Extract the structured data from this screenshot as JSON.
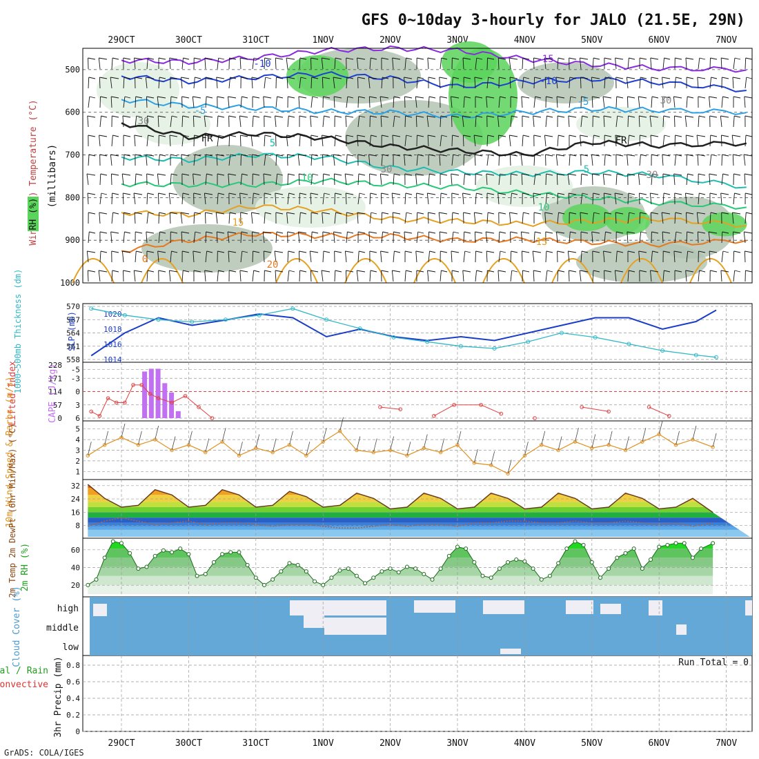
{
  "title": "GFS 0~10day 3-hourly for JALO (21.5E, 29N)",
  "footer": "GrADS: COLA/IGES",
  "dates": [
    "29OCT",
    "30OCT",
    "31OCT",
    "1NOV",
    "2NOV",
    "3NOV",
    "4NOV",
    "5NOV",
    "6NOV",
    "7NOV"
  ],
  "colors": {
    "rh_green": "#5ad45a",
    "rh_grey": "#b4c4b4",
    "rh_light": "#e2f0e2",
    "temp_purple": "#8a2be2",
    "temp_blue": "#1f3fcf",
    "temp_lightblue": "#2aa0e6",
    "temp_teal": "#1cbcb0",
    "temp_green": "#28c878",
    "temp_orange": "#e6a020",
    "temp_red": "#e03030",
    "slp": "#1a3cc8",
    "thickness": "#30b8c8",
    "cape": "#c070f0",
    "lifted": "#e04040",
    "wind": "#e09020",
    "cloud": "#64a8d8",
    "temp_line": "#6b3a1e"
  },
  "panels": {
    "upper": {
      "left_labels": [
        "Wind (m/s)",
        "Temperature (°C)",
        "RH (%)",
        "(millibars)"
      ],
      "yticks": [
        "500",
        "600",
        "700",
        "800",
        "900",
        "1000"
      ],
      "contour_labels": [
        "-15",
        "-10",
        "-5",
        "FR",
        "5",
        "10",
        "15",
        "20",
        "0",
        "30"
      ],
      "chart_data": {
        "type": "heatmap",
        "y_unit": "mb",
        "ylim": [
          450,
          1000
        ],
        "isotherms": [
          {
            "name": "-15",
            "color": "#8a2be2",
            "x_days": [
              0,
              1,
              2,
              3,
              4,
              5,
              6,
              7,
              8,
              9.3
            ],
            "p": [
              478,
              482,
              472,
              455,
              450,
              455,
              475,
              488,
              497,
              500
            ]
          },
          {
            "name": "-10",
            "color": "#1f3fcf",
            "x_days": [
              0,
              1,
              2,
              3,
              4,
              5,
              6,
              7,
              8,
              9.3
            ],
            "p": [
              515,
              528,
              518,
              510,
              520,
              540,
              528,
              522,
              530,
              548
            ]
          },
          {
            "name": "-5",
            "color": "#2aa0e6",
            "x_days": [
              0,
              1,
              2,
              3,
              4,
              5,
              6,
              7,
              8,
              9.3
            ],
            "p": [
              570,
              585,
              590,
              598,
              600,
              610,
              600,
              592,
              595,
              600
            ]
          },
          {
            "name": "FR",
            "color": "#222222",
            "x_days": [
              0,
              1,
              2,
              3,
              4,
              5,
              6,
              7,
              8,
              9.3
            ],
            "p": [
              625,
              658,
              650,
              660,
              680,
              690,
              700,
              670,
              678,
              672
            ]
          },
          {
            "name": "5",
            "color": "#1cbcb0",
            "x_days": [
              0,
              1,
              2,
              3,
              4,
              5,
              6,
              7,
              8,
              9.3
            ],
            "p": [
              705,
              712,
              700,
              705,
              730,
              740,
              745,
              740,
              748,
              775
            ]
          },
          {
            "name": "10",
            "color": "#28c878",
            "x_days": [
              0,
              1,
              2,
              3,
              4,
              5,
              6,
              7,
              8,
              9.3
            ],
            "p": [
              768,
              770,
              770,
              760,
              770,
              775,
              790,
              800,
              812,
              822
            ]
          },
          {
            "name": "15",
            "color": "#e6a020",
            "x_days": [
              0,
              1,
              2,
              3,
              4,
              5,
              6,
              7,
              8,
              9.3
            ],
            "p": [
              835,
              840,
              820,
              830,
              850,
              855,
              862,
              855,
              850,
              865
            ]
          },
          {
            "name": "20",
            "color": "#e67820",
            "x_days": [
              0,
              1,
              2,
              3,
              4,
              5,
              6,
              7,
              8,
              9.3
            ],
            "p": [
              925,
              900,
              885,
              890,
              890,
              900,
              898,
              905,
              910,
              900
            ]
          }
        ]
      }
    },
    "slp": {
      "label_left": "1000~500mb Thickness (dm)",
      "label_right": "SLP (mb)",
      "yticks_left": [
        "570",
        "567",
        "564",
        "561",
        "558"
      ],
      "yticks_right": [
        "1020",
        "1018",
        "1016",
        "1014"
      ],
      "chart_data": {
        "type": "line",
        "x_days": [
          0,
          0.5,
          1,
          1.5,
          2,
          2.5,
          3,
          3.5,
          4,
          4.5,
          5,
          5.5,
          6,
          6.5,
          7,
          7.5,
          8,
          8.5,
          9,
          9.3
        ],
        "series": [
          {
            "name": "SLP (mb)",
            "axis": "right",
            "values": [
              1014.5,
              1017.5,
              1019.5,
              1018.5,
              1019.2,
              1020,
              1019.5,
              1017,
              1018,
              1017,
              1016.5,
              1017,
              1016.5,
              1017.5,
              1018.5,
              1019.5,
              1019.5,
              1018,
              1019,
              1020.5
            ]
          },
          {
            "name": "1000~500mb Thickness (dm)",
            "axis": "left",
            "values": [
              569.5,
              568,
              567,
              566.5,
              567,
              568,
              569.5,
              567,
              565,
              563,
              562,
              561,
              560.5,
              562,
              564,
              563,
              561.5,
              560,
              559,
              558.5
            ]
          }
        ],
        "ylim_left": [
          558,
          570
        ],
        "ylim_right": [
          1014,
          1021
        ]
      }
    },
    "cape": {
      "label_left": "Lifted Index",
      "label_right": "CAPE (J/kg)",
      "yticks_left": [
        "-5",
        "-3",
        "0",
        "3",
        "6"
      ],
      "yticks_right": [
        "228",
        "171",
        "114",
        "57",
        "0"
      ],
      "chart_data": {
        "type": "bar",
        "cape_x_days": [
          0.35,
          0.45,
          0.55,
          0.65,
          0.75,
          0.85
        ],
        "cape_values": [
          200,
          212,
          212,
          150,
          110,
          30
        ],
        "lifted_x_days": [
          0,
          0.125,
          0.25,
          0.375,
          0.5,
          0.625,
          0.75,
          0.875,
          1,
          1.2,
          1.4,
          1.6,
          1.8,
          4.3,
          4.6,
          5.1,
          5.4,
          5.8,
          6.1,
          6.6,
          7.3,
          7.7,
          8.3,
          8.6
        ],
        "lifted_values": [
          4.5,
          5.5,
          1.5,
          2.5,
          2.5,
          -1.5,
          -1.5,
          0.5,
          1.5,
          2.5,
          1,
          3.5,
          6,
          3.5,
          4,
          5.5,
          3,
          3,
          5,
          6,
          3.5,
          4.5,
          3.5,
          5.5
        ],
        "ylim_cape": [
          0,
          228
        ],
        "ylim_li": [
          6,
          -6
        ]
      }
    },
    "wind": {
      "label": "10m Wind Speed & Barbs (m/s)",
      "yticks": [
        "5",
        "4",
        "3",
        "2",
        "1"
      ],
      "chart_data": {
        "type": "line",
        "x_days": [
          0,
          0.25,
          0.5,
          0.75,
          1,
          1.25,
          1.5,
          1.75,
          2,
          2.25,
          2.5,
          2.75,
          3,
          3.25,
          3.5,
          3.75,
          4,
          4.25,
          4.5,
          4.75,
          5,
          5.25,
          5.5,
          5.75,
          6,
          6.25,
          6.5,
          6.75,
          7,
          7.25,
          7.5,
          7.75,
          8,
          8.25,
          8.5,
          8.75,
          9,
          9.3
        ],
        "values": [
          2.5,
          3.5,
          4.2,
          3.5,
          4,
          3,
          3.5,
          2.8,
          3.8,
          2.5,
          3.2,
          2.8,
          3.5,
          2.5,
          3.8,
          4.8,
          3,
          2.8,
          3,
          2.5,
          3.2,
          2.8,
          3.5,
          1.8,
          1.6,
          0.8,
          2.5,
          3.5,
          3,
          3.8,
          3.2,
          3.5,
          3,
          3.8,
          4.5,
          3.5,
          4,
          3.3
        ],
        "ylim": [
          0.5,
          5.5
        ]
      }
    },
    "temp": {
      "label": "2m Temp 2m DewPt (6hr Min/Max) (°C)",
      "yticks": [
        "32",
        "24",
        "16",
        "8"
      ],
      "chart_data": {
        "type": "area",
        "x_days": [
          0,
          0.25,
          0.5,
          0.75,
          1,
          1.25,
          1.5,
          1.75,
          2,
          2.25,
          2.5,
          2.75,
          3,
          3.25,
          3.5,
          3.75,
          4,
          4.25,
          4.5,
          4.75,
          5,
          5.25,
          5.5,
          5.75,
          6,
          6.25,
          6.5,
          6.75,
          7,
          7.25,
          7.5,
          7.75,
          8,
          8.25,
          8.5,
          8.75,
          9,
          9.3
        ],
        "temperature": [
          32,
          24,
          19,
          20,
          29,
          26,
          19,
          20,
          29,
          26,
          19,
          20,
          28,
          25,
          19,
          20,
          27,
          24,
          18,
          19,
          27,
          24,
          18,
          19,
          27,
          24,
          18,
          19,
          27,
          24,
          18,
          19,
          27,
          24,
          18,
          19,
          24,
          16
        ],
        "dewpoint": [
          8,
          11,
          13,
          11,
          9,
          10,
          11,
          9,
          10,
          10,
          9,
          8,
          9,
          9,
          8,
          7,
          7,
          8,
          9,
          8,
          9,
          9,
          8,
          10,
          10,
          11,
          11,
          10,
          10,
          11,
          10,
          10,
          11,
          10,
          9,
          10,
          8,
          10
        ],
        "ylim": [
          2,
          34
        ]
      }
    },
    "rh": {
      "label": "2m RH (%)",
      "yticks": [
        "60",
        "40",
        "20"
      ],
      "chart_data": {
        "type": "area",
        "x_days": [
          0,
          0.125,
          0.25,
          0.375,
          0.5,
          0.625,
          0.75,
          0.875,
          1,
          1.125,
          1.25,
          1.375,
          1.5,
          1.625,
          1.75,
          1.875,
          2,
          2.125,
          2.25,
          2.375,
          2.5,
          2.625,
          2.75,
          2.875,
          3,
          3.125,
          3.25,
          3.375,
          3.5,
          3.625,
          3.75,
          3.875,
          4,
          4.125,
          4.25,
          4.375,
          4.5,
          4.625,
          4.75,
          4.875,
          5,
          5.125,
          5.25,
          5.375,
          5.5,
          5.625,
          5.75,
          5.875,
          6,
          6.125,
          6.25,
          6.375,
          6.5,
          6.625,
          6.75,
          6.875,
          7,
          7.125,
          7.25,
          7.375,
          7.5,
          7.625,
          7.75,
          7.875,
          8,
          8.125,
          8.25,
          8.375,
          8.5,
          8.625,
          8.75,
          8.875,
          9,
          9.125,
          9.3
        ],
        "values": [
          20,
          26,
          50,
          68,
          66,
          55,
          38,
          40,
          52,
          58,
          56,
          60,
          54,
          30,
          32,
          45,
          54,
          56,
          56,
          42,
          28,
          20,
          26,
          35,
          44,
          42,
          35,
          24,
          20,
          28,
          36,
          38,
          30,
          22,
          28,
          35,
          38,
          34,
          40,
          38,
          32,
          26,
          38,
          52,
          62,
          60,
          45,
          30,
          28,
          38,
          45,
          48,
          46,
          38,
          26,
          30,
          44,
          60,
          68,
          64,
          45,
          28,
          38,
          50,
          55,
          60,
          38,
          48,
          62,
          64,
          66,
          66,
          50,
          60,
          66
        ],
        "ylim": [
          10,
          70
        ]
      }
    },
    "cloud": {
      "label": "Cloud Cover (%)",
      "rows": [
        "high",
        "middle",
        "low"
      ]
    },
    "precip": {
      "label_a": "Total / Rain",
      "label_b": "Convective",
      "label_axis": "3hr Precip (mm)",
      "run_total": "Run Total = 0",
      "yticks": [
        "0.8",
        "0.6",
        "0.4",
        "0.2",
        "0"
      ]
    }
  }
}
